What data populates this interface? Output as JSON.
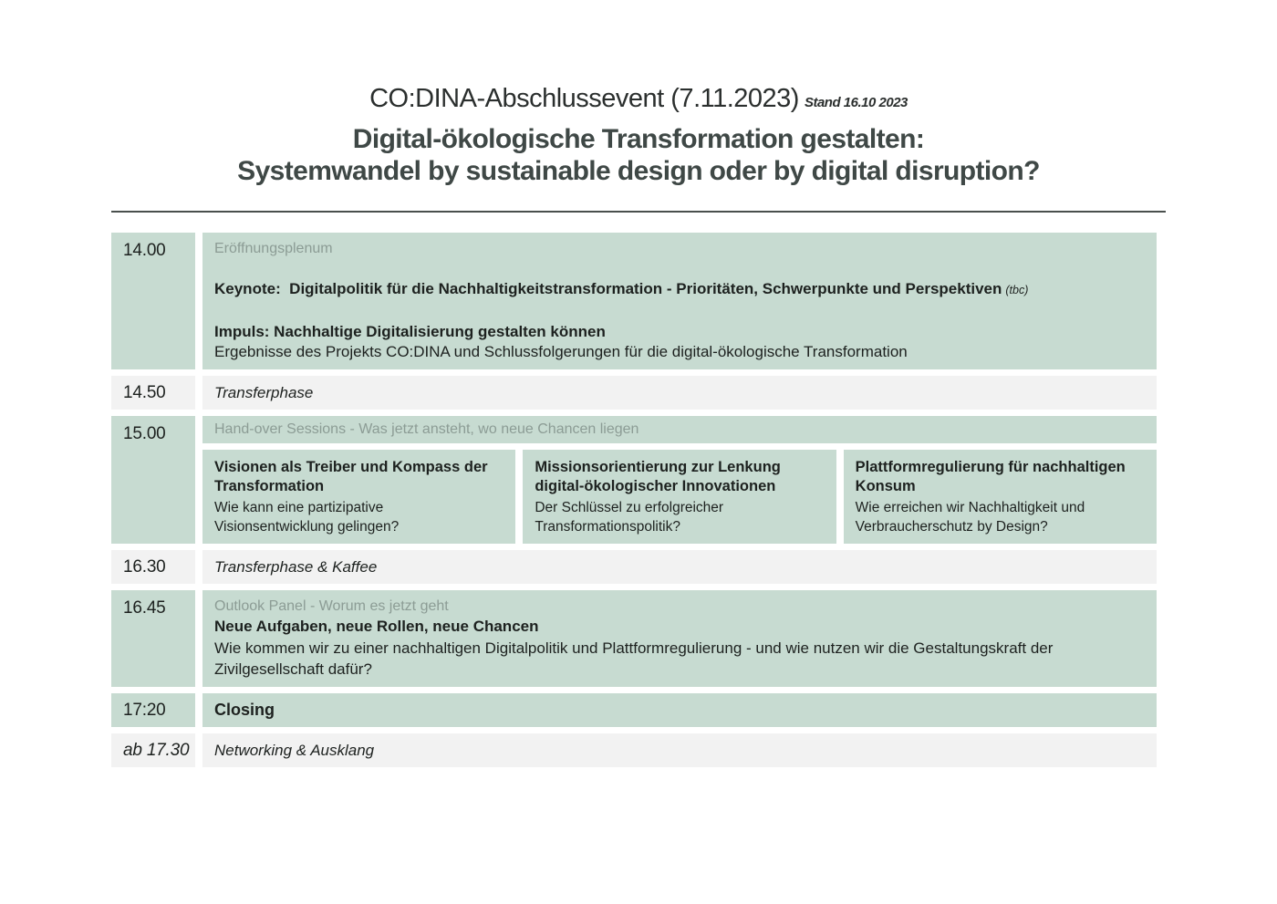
{
  "header": {
    "title_main": "CO:DINA-Abschlussevent (7.11.2023)",
    "title_stand": "Stand 16.10 2023",
    "subtitle_line1": "Digital-ökologische Transformation gestalten:",
    "subtitle_line2": "Systemwandel by sustainable design oder by digital disruption?"
  },
  "colors": {
    "accent_green": "#c7dbd1",
    "row_gray": "#f2f2f2",
    "muted_text": "#8c9c95",
    "title_dark": "#3f4846",
    "body_text": "#1d211f"
  },
  "schedule": {
    "rows": [
      {
        "time": "14.00",
        "section_label": "Eröffnungsplenum",
        "keynote_bold": "Keynote:  Digitalpolitik für die Nachhaltigkeitstransformation - Prioritäten, Schwerpunkte und Perspektiven",
        "keynote_tbc": "(tbc)",
        "impuls_bold": "Impuls: Nachhaltige Digitalisierung gestalten können",
        "impuls_desc": "Ergebnisse des Projekts CO:DINA und Schlussfolgerungen für die digital-ökologische Transformation"
      },
      {
        "time": "14.50",
        "label": "Transferphase"
      },
      {
        "time": "15.00",
        "header_label": "Hand-over Sessions - Was jetzt ansteht, wo neue Chancen liegen",
        "sessions": [
          {
            "title": "Visionen als Treiber und Kompass der Transformation",
            "desc": "Wie kann eine partizipative Visionsentwicklung gelingen?"
          },
          {
            "title": "Missionsorientierung zur Lenkung digital-ökologischer Innovationen",
            "desc": "Der Schlüssel zu erfolgreicher Transformationspolitik?"
          },
          {
            "title": "Plattformregulierung für nachhaltigen Konsum",
            "desc": "Wie erreichen wir Nachhaltigkeit und Verbraucherschutz by Design?"
          }
        ]
      },
      {
        "time": "16.30",
        "label": "Transferphase & Kaffee"
      },
      {
        "time": "16.45",
        "section_label": "Outlook Panel - Worum es jetzt geht",
        "title_bold": "Neue Aufgaben, neue Rollen, neue Chancen",
        "desc": "Wie kommen wir zu einer nachhaltigen Digitalpolitik und Plattformregulierung - und wie nutzen wir die Gestaltungskraft der Zivilgesellschaft dafür?"
      },
      {
        "time": "17:20",
        "label": "Closing"
      },
      {
        "time": "ab 17.30",
        "label": "Networking & Ausklang"
      }
    ]
  }
}
